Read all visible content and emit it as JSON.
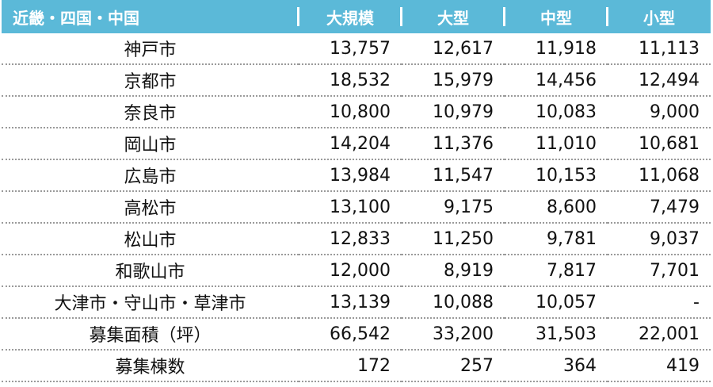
{
  "table": {
    "header": [
      "近畿・四国・中国",
      "大規模",
      "大型",
      "中型",
      "小型"
    ],
    "rows": [
      [
        "神戸市",
        "13,757",
        "12,617",
        "11,918",
        "11,113"
      ],
      [
        "京都市",
        "18,532",
        "15,979",
        "14,456",
        "12,494"
      ],
      [
        "奈良市",
        "10,800",
        "10,979",
        "10,083",
        "9,000"
      ],
      [
        "岡山市",
        "14,204",
        "11,376",
        "11,010",
        "10,681"
      ],
      [
        "広島市",
        "13,984",
        "11,547",
        "10,153",
        "11,068"
      ],
      [
        "高松市",
        "13,100",
        "9,175",
        "8,600",
        "7,479"
      ],
      [
        "松山市",
        "12,833",
        "11,250",
        "9,781",
        "9,037"
      ],
      [
        "和歌山市",
        "12,000",
        "8,919",
        "7,817",
        "7,701"
      ],
      [
        "大津市・守山市・草津市",
        "13,139",
        "10,088",
        "10,057",
        "-"
      ],
      [
        "募集面積（坪）",
        "66,542",
        "33,200",
        "31,503",
        "22,001"
      ],
      [
        "募集棟数",
        "172",
        "257",
        "364",
        "419"
      ]
    ]
  }
}
